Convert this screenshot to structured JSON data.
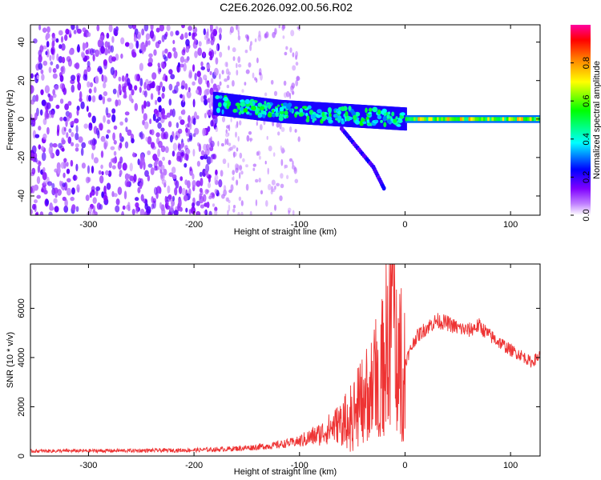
{
  "title": "C2E6.2026.092.00.56.R02",
  "chart_data": [
    {
      "type": "heatmap",
      "xlabel": "Height of straight line (km)",
      "ylabel": "Frequency (Hz)",
      "xlim": [
        -355,
        128
      ],
      "ylim": [
        -50,
        49
      ],
      "x_ticks": [
        "-300",
        "-200",
        "-100",
        "0",
        "100"
      ],
      "y_ticks": [
        "-40",
        "-20",
        "0",
        "20",
        "40"
      ],
      "colorbar": {
        "label": "Normalized spectral amplitude",
        "range": [
          0,
          1
        ],
        "ticks": [
          "0.0",
          "0.2",
          "0.4",
          "0.6",
          "0.8"
        ],
        "colormap": [
          "#ffffff",
          "#8000ff",
          "#0000ff",
          "#00ffff",
          "#00ff00",
          "#ffff00",
          "#ff8000",
          "#ff0000",
          "#ff00a0"
        ]
      },
      "features": {
        "noise_region_x": [
          -355,
          -175
        ],
        "signal_track": [
          {
            "x": -180,
            "f": 8
          },
          {
            "x": -150,
            "f": 6
          },
          {
            "x": -120,
            "f": 4
          },
          {
            "x": -90,
            "f": 3
          },
          {
            "x": -60,
            "f": 2
          },
          {
            "x": -30,
            "f": 1
          },
          {
            "x": 0,
            "f": 0
          },
          {
            "x": 128,
            "f": 0
          }
        ],
        "branch_track": [
          {
            "x": -60,
            "f": -5
          },
          {
            "x": -45,
            "f": -15
          },
          {
            "x": -30,
            "f": -25
          },
          {
            "x": -20,
            "f": -36
          }
        ]
      }
    },
    {
      "type": "line",
      "xlabel": "Height of straight line (km)",
      "ylabel": "SNR (10 * v/v)",
      "xlim": [
        -355,
        128
      ],
      "ylim": [
        0,
        7800
      ],
      "x_ticks": [
        "-300",
        "-200",
        "-100",
        "0",
        "100"
      ],
      "y_ticks": [
        "0",
        "2000",
        "4000",
        "6000"
      ],
      "color": "#ee3333",
      "series": [
        {
          "x": [
            -355,
            -300,
            -250,
            -200,
            -175,
            -150,
            -125,
            -100,
            -80,
            -60,
            -50,
            -40,
            -30,
            -20,
            -13,
            -5,
            0,
            10,
            20,
            30,
            40,
            50,
            60,
            70,
            80,
            90,
            100,
            110,
            120,
            128
          ],
          "values": [
            200,
            210,
            220,
            240,
            270,
            330,
            420,
            600,
            900,
            1400,
            1800,
            2400,
            3000,
            3700,
            7600,
            4300,
            3800,
            4800,
            5200,
            5500,
            5400,
            5200,
            5100,
            5300,
            4900,
            4600,
            4300,
            4100,
            3800,
            4100
          ]
        }
      ]
    }
  ]
}
